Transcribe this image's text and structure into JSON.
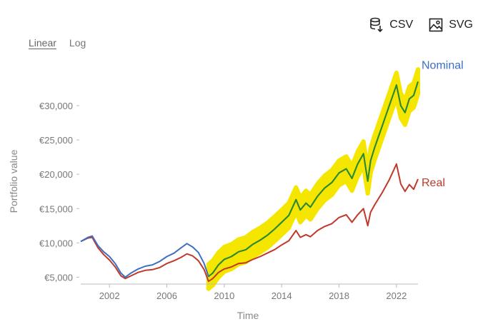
{
  "toolbar": {
    "csv_label": "CSV",
    "svg_label": "SVG",
    "csv_icon": "database-download-icon",
    "svg_icon": "image-icon"
  },
  "scale": {
    "linear_label": "Linear",
    "log_label": "Log",
    "selected": "Linear"
  },
  "colors": {
    "nominal": "#3d6fc4",
    "real": "#c0392b",
    "highlight": "#f5e600",
    "highlight_line": "#2e8b2e"
  },
  "chart_data": {
    "type": "line",
    "xlabel": "Time",
    "ylabel": "Portfolio value",
    "xlim": [
      2000.0,
      2023.5
    ],
    "ylim": [
      4000,
      35000
    ],
    "x_ticks": [
      2002,
      2006,
      2010,
      2014,
      2018,
      2022
    ],
    "x_tick_labels": [
      "2002",
      "2006",
      "2010",
      "2014",
      "2018",
      "2022"
    ],
    "y_ticks": [
      5000,
      10000,
      15000,
      20000,
      25000,
      30000
    ],
    "y_tick_labels": [
      "€5,000",
      "€10,000",
      "€15,000",
      "€20,000",
      "€25,000",
      "€30,000"
    ],
    "grid": false,
    "highlight_band": {
      "x_start": 2008.8,
      "x_end": 2023.5,
      "half_width": 1800
    },
    "series": [
      {
        "name": "Nominal",
        "x": [
          2000.0,
          2000.5,
          2000.8,
          2001.2,
          2001.6,
          2002.0,
          2002.4,
          2002.8,
          2003.1,
          2003.5,
          2004.0,
          2004.5,
          2005.0,
          2005.5,
          2006.0,
          2006.5,
          2007.0,
          2007.4,
          2007.8,
          2008.2,
          2008.6,
          2008.9,
          2009.2,
          2009.6,
          2010.0,
          2010.5,
          2011.0,
          2011.5,
          2012.0,
          2012.5,
          2013.0,
          2013.5,
          2014.0,
          2014.5,
          2015.0,
          2015.3,
          2015.7,
          2016.0,
          2016.5,
          2017.0,
          2017.5,
          2018.0,
          2018.5,
          2018.9,
          2019.3,
          2019.7,
          2020.0,
          2020.2,
          2020.5,
          2021.0,
          2021.5,
          2022.0,
          2022.3,
          2022.6,
          2022.9,
          2023.2,
          2023.5
        ],
        "values": [
          10200,
          10800,
          11000,
          9600,
          8700,
          8000,
          7000,
          5600,
          5000,
          5600,
          6200,
          6600,
          6800,
          7300,
          8000,
          8500,
          9300,
          9900,
          9400,
          8600,
          7000,
          5100,
          5600,
          6800,
          7600,
          8000,
          8700,
          9000,
          9800,
          10400,
          11100,
          12000,
          13000,
          14000,
          16300,
          14800,
          15800,
          15200,
          16800,
          18000,
          18800,
          20200,
          20800,
          19400,
          21500,
          23000,
          19000,
          22000,
          24000,
          27000,
          30000,
          33000,
          30000,
          29000,
          31000,
          31500,
          33500
        ]
      },
      {
        "name": "Real",
        "x": [
          2000.0,
          2000.5,
          2000.8,
          2001.2,
          2001.6,
          2002.0,
          2002.4,
          2002.8,
          2003.1,
          2003.5,
          2004.0,
          2004.5,
          2005.0,
          2005.5,
          2006.0,
          2006.5,
          2007.0,
          2007.4,
          2007.8,
          2008.2,
          2008.6,
          2008.9,
          2009.2,
          2009.6,
          2010.0,
          2010.5,
          2011.0,
          2011.5,
          2012.0,
          2012.5,
          2013.0,
          2013.5,
          2014.0,
          2014.5,
          2015.0,
          2015.3,
          2015.7,
          2016.0,
          2016.5,
          2017.0,
          2017.5,
          2018.0,
          2018.5,
          2018.9,
          2019.3,
          2019.7,
          2020.0,
          2020.2,
          2020.5,
          2021.0,
          2021.5,
          2022.0,
          2022.3,
          2022.6,
          2022.9,
          2023.2,
          2023.5
        ],
        "values": [
          10200,
          10700,
          10800,
          9300,
          8300,
          7500,
          6500,
          5200,
          4800,
          5200,
          5700,
          6000,
          6100,
          6400,
          7000,
          7400,
          7900,
          8400,
          8100,
          7400,
          6100,
          4400,
          4800,
          5700,
          6200,
          6500,
          7000,
          7100,
          7600,
          8000,
          8500,
          9000,
          9700,
          10300,
          11800,
          10800,
          11200,
          10900,
          11800,
          12400,
          12800,
          13700,
          14100,
          13000,
          14100,
          15000,
          12500,
          14500,
          15600,
          17300,
          19200,
          21500,
          18600,
          17500,
          18500,
          17800,
          19300
        ]
      }
    ]
  }
}
